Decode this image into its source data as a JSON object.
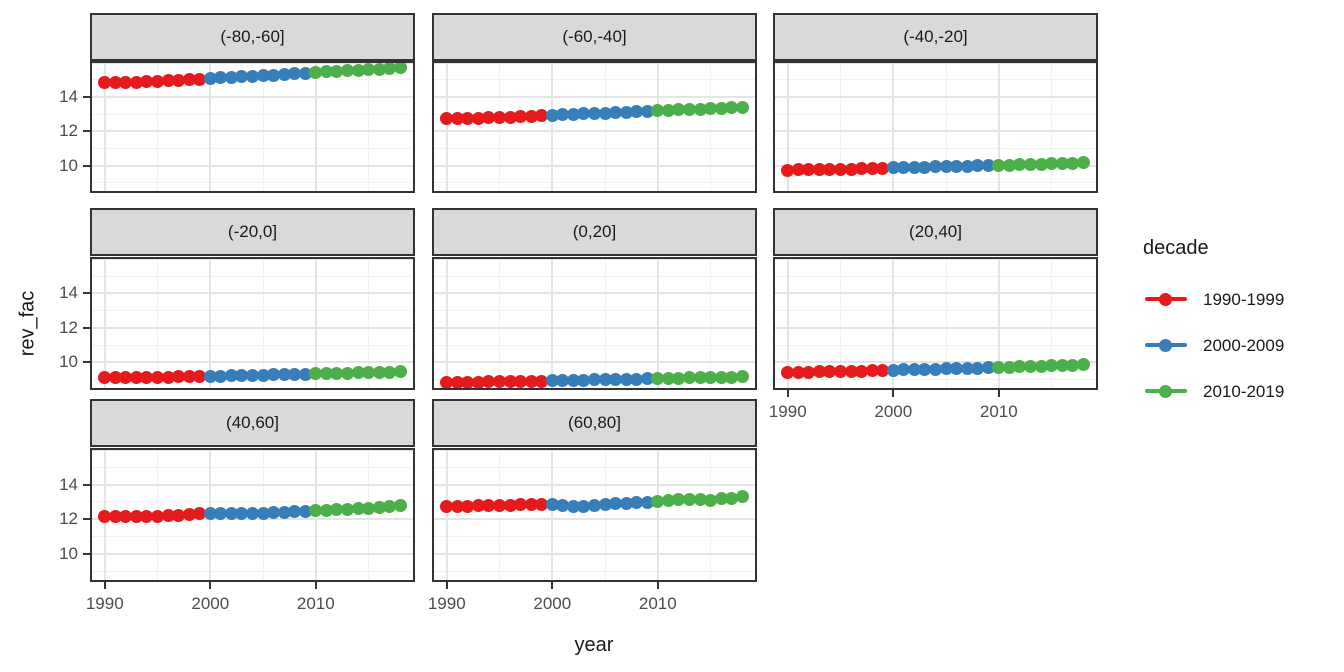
{
  "figure": {
    "x_axis_title": "year",
    "y_axis_title": "rev_fac"
  },
  "legend": {
    "title": "decade",
    "entries": [
      {
        "label": "1990-1999",
        "color": "#E41A1C"
      },
      {
        "label": "2000-2009",
        "color": "#377EB8"
      },
      {
        "label": "2010-2019",
        "color": "#4DAF4A"
      }
    ]
  },
  "chart_data": {
    "type": "scatter",
    "title": "",
    "xlabel": "year",
    "ylabel": "rev_fac",
    "faceted": true,
    "facet_grid": {
      "ncol": 3,
      "nrow": 3
    },
    "legend_position": "right",
    "grid": true,
    "xlim": [
      1988.6,
      2019.4
    ],
    "ylim": [
      8.4,
      16.1
    ],
    "x_major_ticks": [
      1990,
      2000,
      2010
    ],
    "y_major_ticks": [
      14,
      12,
      10
    ],
    "x_major_grid": [
      1990,
      2000,
      2010
    ],
    "x_minor_grid": [
      1995,
      2005,
      2015
    ],
    "y_major_grid": [
      10,
      12,
      14,
      16
    ],
    "y_minor_grid": [
      9,
      11,
      13,
      15
    ],
    "x": [
      1990,
      1991,
      1992,
      1993,
      1994,
      1995,
      1996,
      1997,
      1998,
      1999,
      2000,
      2001,
      2002,
      2003,
      2004,
      2005,
      2006,
      2007,
      2008,
      2009,
      2010,
      2011,
      2012,
      2013,
      2014,
      2015,
      2016,
      2017,
      2018
    ],
    "series_coloring": [
      {
        "name": "1990-1999",
        "year_min": 1990,
        "year_max": 1999,
        "color": "#E41A1C"
      },
      {
        "name": "2000-2009",
        "year_min": 2000,
        "year_max": 2009,
        "color": "#377EB8"
      },
      {
        "name": "2010-2019",
        "year_min": 2010,
        "year_max": 2019,
        "color": "#4DAF4A"
      }
    ],
    "facets": [
      {
        "label": "(-80,-60]",
        "cell": [
          0,
          0
        ],
        "values": [
          14.82,
          14.84,
          14.85,
          14.87,
          14.89,
          14.91,
          14.94,
          14.97,
          15.0,
          15.05,
          15.1,
          15.13,
          15.16,
          15.19,
          15.22,
          15.25,
          15.28,
          15.31,
          15.35,
          15.4,
          15.44,
          15.47,
          15.5,
          15.53,
          15.56,
          15.59,
          15.62,
          15.65,
          15.7
        ]
      },
      {
        "label": "(-60,-40]",
        "cell": [
          0,
          1
        ],
        "values": [
          12.72,
          12.73,
          12.75,
          12.76,
          12.78,
          12.8,
          12.82,
          12.85,
          12.88,
          12.91,
          12.94,
          12.96,
          12.99,
          13.01,
          13.04,
          13.06,
          13.09,
          13.11,
          13.13,
          13.16,
          13.19,
          13.22,
          13.25,
          13.28,
          13.3,
          13.32,
          13.34,
          13.36,
          13.38
        ]
      },
      {
        "label": "(-40,-20]",
        "cell": [
          0,
          2
        ],
        "values": [
          9.74,
          9.75,
          9.76,
          9.77,
          9.78,
          9.79,
          9.8,
          9.81,
          9.83,
          9.84,
          9.86,
          9.87,
          9.89,
          9.9,
          9.92,
          9.93,
          9.95,
          9.96,
          9.98,
          9.99,
          10.01,
          10.03,
          10.05,
          10.07,
          10.09,
          10.11,
          10.12,
          10.14,
          10.16
        ]
      },
      {
        "label": "(-20,0]",
        "cell": [
          1,
          0
        ],
        "values": [
          9.1,
          9.11,
          9.11,
          9.12,
          9.13,
          9.14,
          9.15,
          9.16,
          9.17,
          9.18,
          9.2,
          9.21,
          9.22,
          9.24,
          9.25,
          9.26,
          9.27,
          9.29,
          9.3,
          9.31,
          9.33,
          9.34,
          9.36,
          9.37,
          9.39,
          9.4,
          9.42,
          9.43,
          9.45
        ]
      },
      {
        "label": "(0,20]",
        "cell": [
          1,
          1
        ],
        "values": [
          8.84,
          8.85,
          8.85,
          8.86,
          8.87,
          8.88,
          8.89,
          8.9,
          8.91,
          8.92,
          8.93,
          8.94,
          8.95,
          8.97,
          8.98,
          8.99,
          9.0,
          9.01,
          9.03,
          9.04,
          9.06,
          9.07,
          9.08,
          9.1,
          9.11,
          9.12,
          9.13,
          9.15,
          9.16
        ]
      },
      {
        "label": "(20,40]",
        "cell": [
          1,
          2
        ],
        "values": [
          9.42,
          9.43,
          9.44,
          9.45,
          9.46,
          9.48,
          9.49,
          9.5,
          9.51,
          9.53,
          9.54,
          9.56,
          9.57,
          9.59,
          9.6,
          9.62,
          9.63,
          9.65,
          9.66,
          9.68,
          9.7,
          9.72,
          9.74,
          9.76,
          9.78,
          9.8,
          9.82,
          9.84,
          9.86
        ]
      },
      {
        "label": "(40,60]",
        "cell": [
          2,
          0
        ],
        "values": [
          12.14,
          12.15,
          12.16,
          12.17,
          12.18,
          12.19,
          12.21,
          12.23,
          12.27,
          12.31,
          12.34,
          12.36,
          12.35,
          12.33,
          12.32,
          12.35,
          12.38,
          12.41,
          12.44,
          12.47,
          12.5,
          12.53,
          12.56,
          12.58,
          12.61,
          12.65,
          12.7,
          12.75,
          12.8
        ]
      },
      {
        "label": "(60,80]",
        "cell": [
          2,
          1
        ],
        "values": [
          12.72,
          12.74,
          12.76,
          12.78,
          12.8,
          12.78,
          12.81,
          12.83,
          12.85,
          12.86,
          12.84,
          12.8,
          12.76,
          12.74,
          12.8,
          12.86,
          12.89,
          12.92,
          12.94,
          12.96,
          13.02,
          13.08,
          13.12,
          13.16,
          13.13,
          13.08,
          13.2,
          13.18,
          13.33
        ]
      }
    ]
  }
}
